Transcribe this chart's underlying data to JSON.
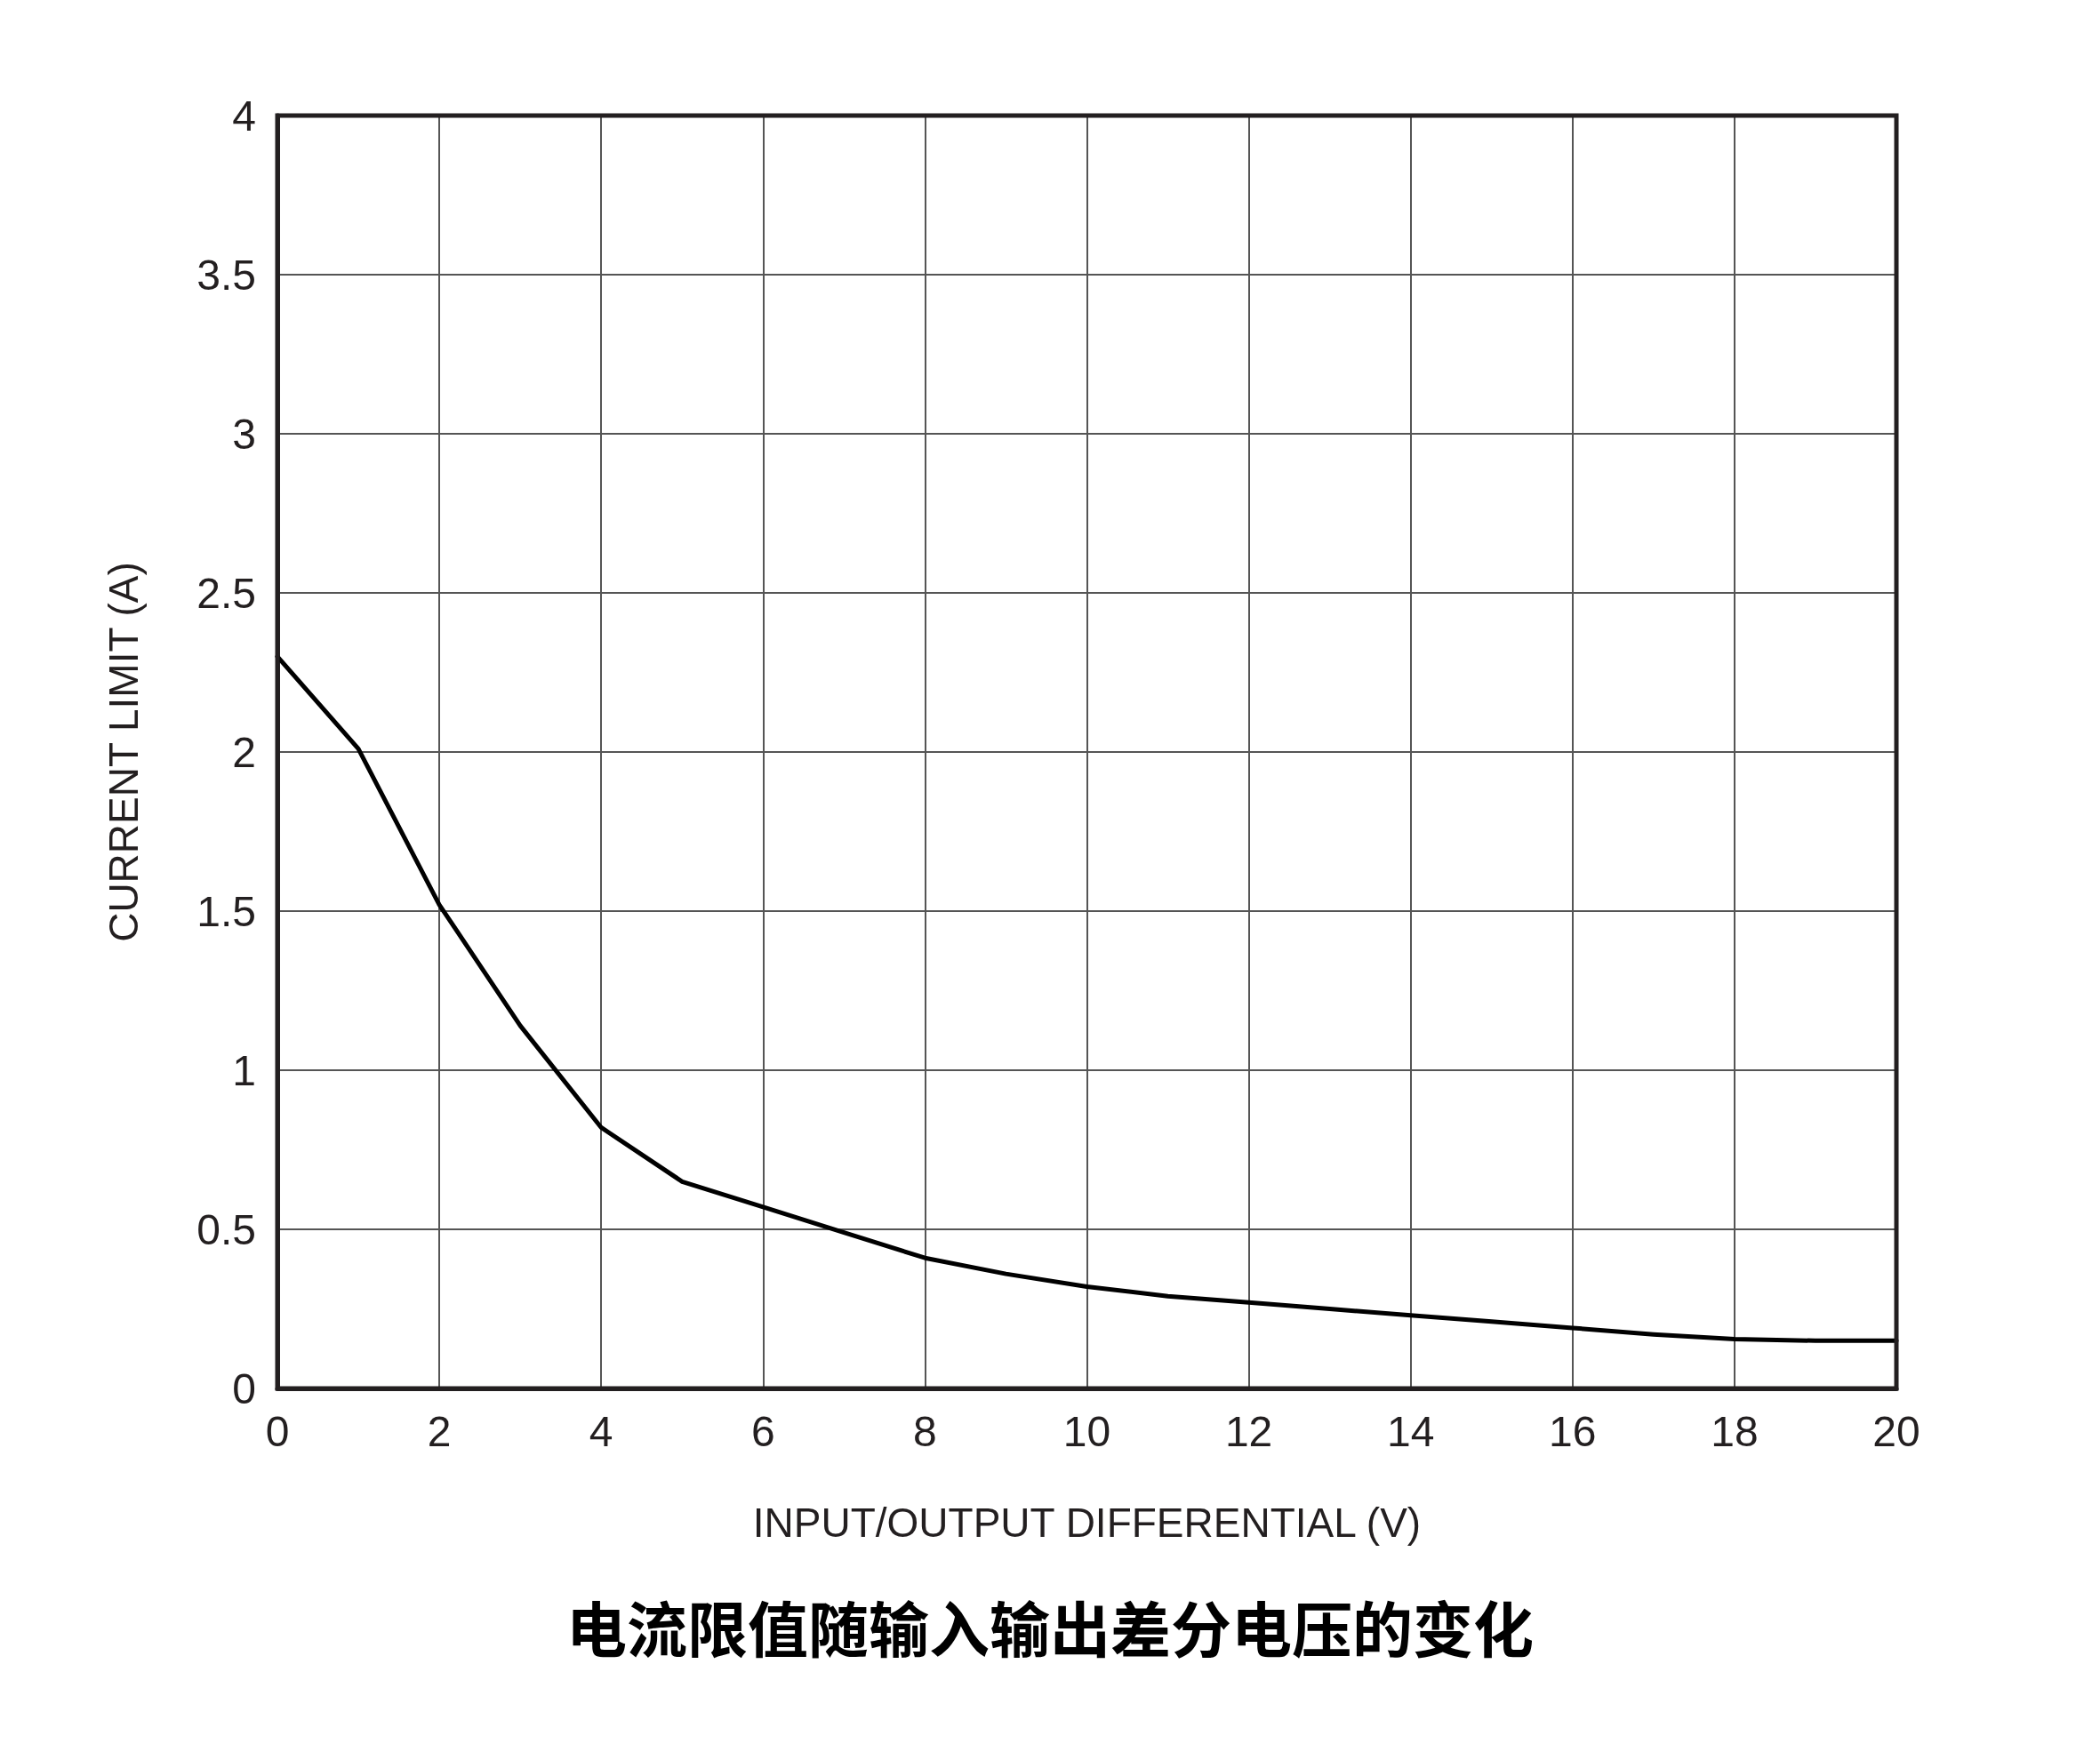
{
  "chart_data": {
    "type": "line",
    "title": "电流限值随输入输出差分电压的变化",
    "xlabel": "INPUT/OUTPUT DIFFERENTIAL (V)",
    "ylabel": "CURRENT LIMIT (A)",
    "x": [
      0,
      1,
      2,
      3,
      4,
      5,
      6,
      7,
      8,
      9,
      10,
      11,
      12,
      13,
      14,
      15,
      16,
      17,
      18,
      19,
      20
    ],
    "series": [
      {
        "color": "#000000",
        "values": [
          2.3,
          2.01,
          1.52,
          1.14,
          0.82,
          0.65,
          0.57,
          0.49,
          0.41,
          0.36,
          0.32,
          0.29,
          0.27,
          0.25,
          0.23,
          0.21,
          0.19,
          0.17,
          0.155,
          0.15,
          0.15
        ]
      }
    ],
    "xlim": [
      0,
      20
    ],
    "xticks": [
      0,
      2,
      4,
      6,
      8,
      10,
      12,
      14,
      16,
      18,
      20
    ],
    "ylim": [
      0,
      4
    ],
    "yticks": [
      0,
      0.5,
      1,
      1.5,
      2,
      2.5,
      3,
      3.5,
      4
    ],
    "grid": true,
    "marker": "none",
    "line_style": "solid"
  }
}
